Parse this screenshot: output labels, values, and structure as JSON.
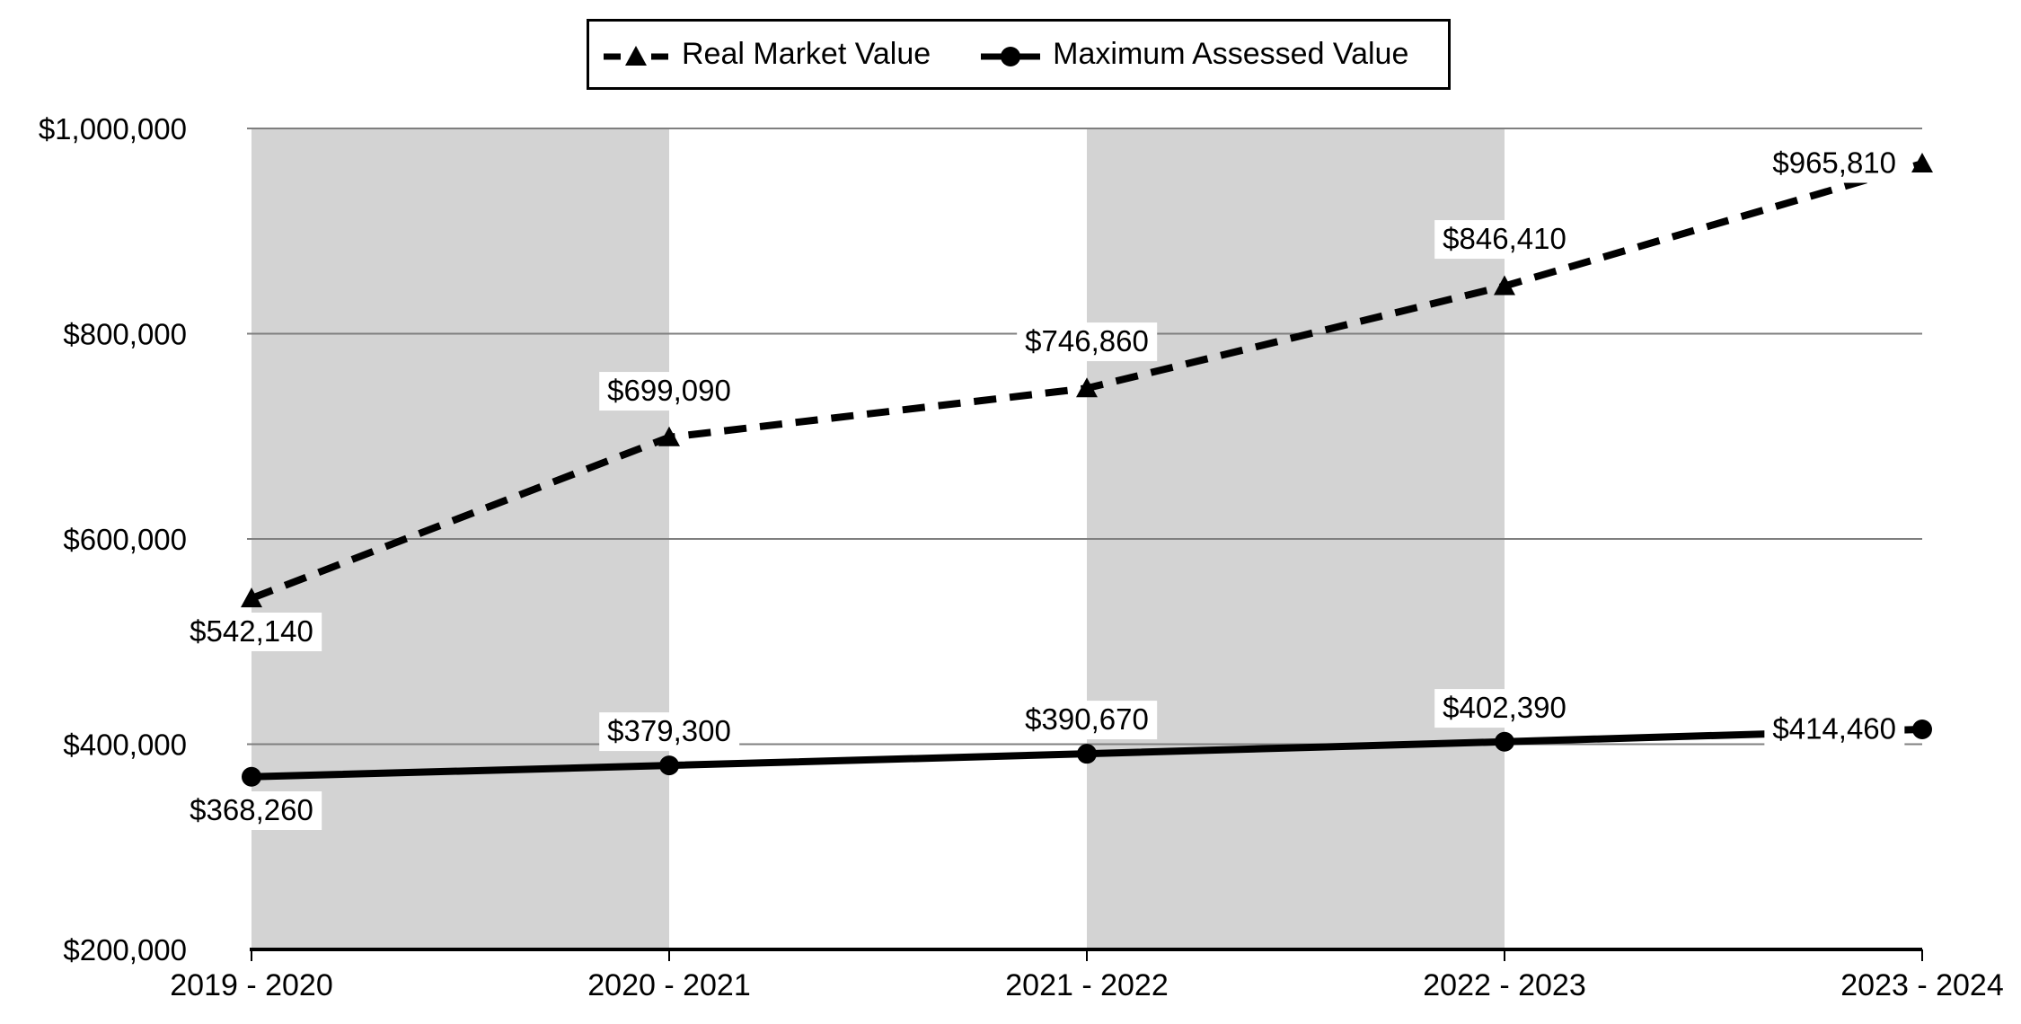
{
  "chart_data": {
    "type": "line",
    "title": "",
    "categories": [
      "2019 - 2020",
      "2020 - 2021",
      "2021 - 2022",
      "2022 - 2023",
      "2023 - 2024"
    ],
    "series": [
      {
        "name": "Real Market Value",
        "values": [
          542140,
          699090,
          746860,
          846410,
          965810
        ],
        "value_labels": [
          "$542,140",
          "$699,090",
          "$746,860",
          "$846,410",
          "$965,810"
        ],
        "line": "dashed",
        "marker": "triangle"
      },
      {
        "name": "Maximum Assessed Value",
        "values": [
          368260,
          379300,
          390670,
          402390,
          414460
        ],
        "value_labels": [
          "$368,260",
          "$379,300",
          "$390,670",
          "$402,390",
          "$414,460"
        ],
        "line": "solid",
        "marker": "circle"
      }
    ],
    "y_axis": {
      "min": 200000,
      "max": 1000000,
      "step": 200000,
      "tick_labels": [
        "$200,000",
        "$400,000",
        "$600,000",
        "$800,000",
        "$1,000,000"
      ]
    },
    "xlabel": "",
    "ylabel": "",
    "legend_position": "top-center",
    "grid": "horizontal",
    "plot_bands": {
      "between_categories": [
        [
          0,
          1
        ],
        [
          2,
          3
        ]
      ]
    }
  },
  "colors": {
    "series": "#000000",
    "gridline": "#7f7f7f",
    "axis": "#000000",
    "band": "#d3d3d3",
    "background": "#ffffff",
    "label_background": "#ffffff"
  }
}
